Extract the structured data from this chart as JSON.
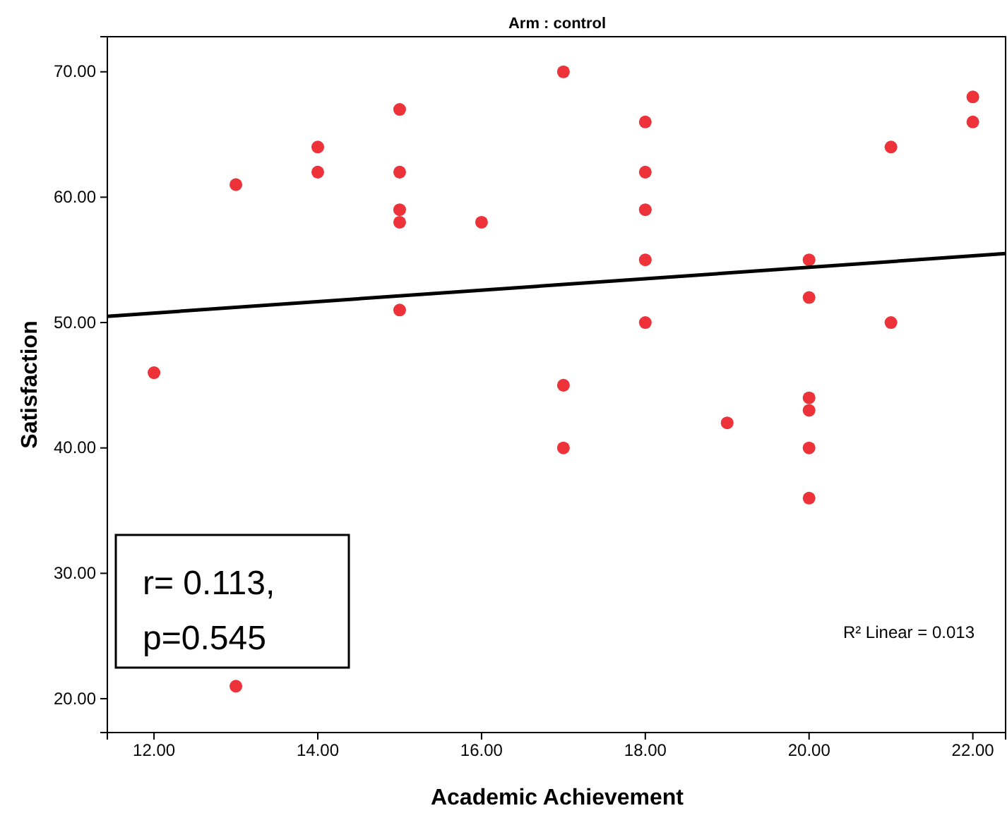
{
  "chart_data": {
    "type": "scatter",
    "title": "Arm : control",
    "xlabel": "Academic Achievement",
    "ylabel": "Satisfaction",
    "xlim": [
      11.43,
      22.4
    ],
    "ylim": [
      17.3,
      72.8
    ],
    "xticks": [
      {
        "value": 12,
        "label": "12.00"
      },
      {
        "value": 14,
        "label": "14.00"
      },
      {
        "value": 16,
        "label": "16.00"
      },
      {
        "value": 18,
        "label": "18.00"
      },
      {
        "value": 20,
        "label": "20.00"
      },
      {
        "value": 22,
        "label": "22.00"
      }
    ],
    "yticks": [
      {
        "value": 20,
        "label": "20.00"
      },
      {
        "value": 30,
        "label": "30.00"
      },
      {
        "value": 40,
        "label": "40.00"
      },
      {
        "value": 50,
        "label": "50.00"
      },
      {
        "value": 60,
        "label": "60.00"
      },
      {
        "value": 70,
        "label": "70.00"
      }
    ],
    "grid": false,
    "marker": "circle",
    "series": [
      {
        "color": "#ee3239",
        "x": [
          12,
          13,
          13,
          14,
          14,
          15,
          15,
          15,
          15,
          15,
          16,
          17,
          17,
          17,
          18,
          18,
          18,
          18,
          18,
          19,
          20,
          20,
          20,
          20,
          20,
          20,
          21,
          21,
          22,
          22
        ],
        "values": [
          46,
          61,
          21,
          64,
          62,
          67,
          62,
          59,
          58,
          51,
          58,
          70,
          45,
          40,
          66,
          62,
          59,
          55,
          50,
          42,
          55,
          52,
          44,
          43,
          40,
          36,
          64,
          50,
          68,
          66
        ]
      },
      {
        "type": "line",
        "marker": "none",
        "color": "#000000",
        "x": [
          11.43,
          22.4
        ],
        "values": [
          50.5,
          55.5
        ]
      }
    ],
    "annotations": [
      "r= 0.113,",
      "p=0.545",
      "R² Linear = 0.013"
    ]
  }
}
